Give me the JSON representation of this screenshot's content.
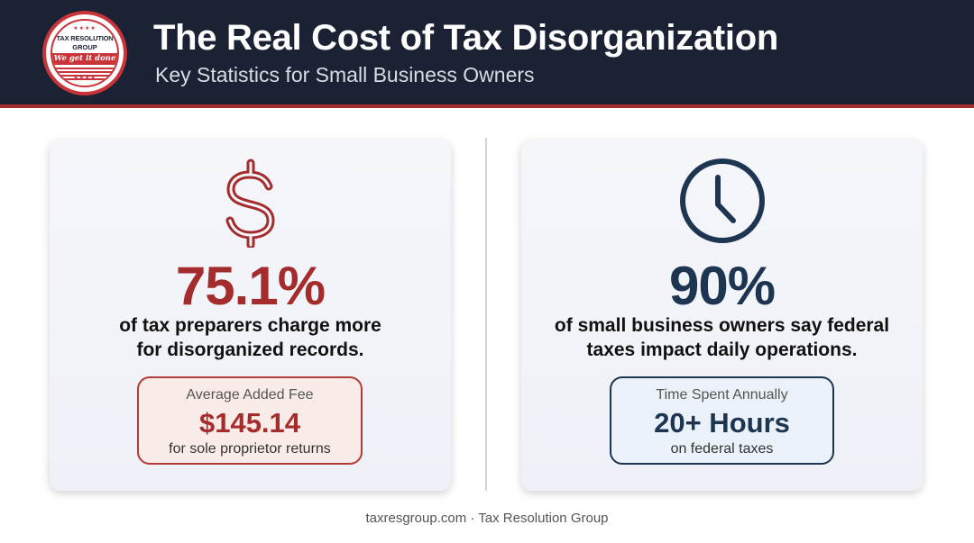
{
  "header": {
    "title": "The Real Cost of Tax Disorganization",
    "subtitle": "Key Statistics for Small Business Owners"
  },
  "logo": {
    "line1": "TAX RESOLUTION",
    "line2": "GROUP",
    "tagline": "We get it done",
    "stars": "★★★★"
  },
  "cards": [
    {
      "icon": "dollar-sign-icon",
      "stat": "75.1%",
      "desc_line1": "of tax preparers charge more",
      "desc_line2": "for disorganized records.",
      "detail_label": "Average Added Fee",
      "detail_value": "$145.14",
      "detail_sub": "for sole proprietor returns"
    },
    {
      "icon": "clock-icon",
      "stat": "90%",
      "desc_line1": "of small business owners say federal",
      "desc_line2": "taxes impact daily operations.",
      "detail_label": "Time Spent Annually",
      "detail_value": "20+ Hours",
      "detail_sub": "on federal taxes"
    }
  ],
  "footer": "taxresgroup.com · Tax Resolution Group",
  "colors": {
    "header_bg": "#1a2233",
    "accent_red": "#a52c2c",
    "accent_navy": "#1d3550"
  }
}
